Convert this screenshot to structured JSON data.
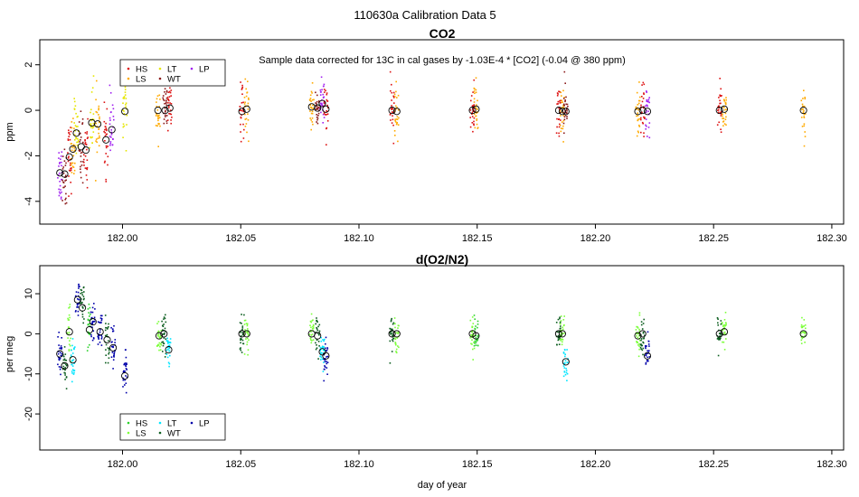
{
  "figure": {
    "title": "110630a   Calibration Data 5"
  },
  "colors": {
    "HS": "#dd1111",
    "LS": "#ffaa00",
    "LT": "#e6e600",
    "WT": "#8b1a1a",
    "LP": "#a020f0",
    "HS2": "#2bd12b",
    "LS2": "#7cff3a",
    "LT2": "#00e5ff",
    "WT2": "#0b5d1e",
    "LP2": "#0000aa"
  },
  "chart_data": [
    {
      "type": "scatter",
      "title": "CO2",
      "annotation": "Sample data corrected for 13C in cal gases by -1.03E-4 * [CO2] (-0.04 @ 380 ppm)",
      "xlabel": "",
      "ylabel": "ppm",
      "xlim": [
        181.965,
        182.305
      ],
      "ylim": [
        -5.0,
        3.1
      ],
      "xticks": [
        182.0,
        182.05,
        182.1,
        182.15,
        182.2,
        182.25,
        182.3
      ],
      "xtick_labels": [
        "182.00",
        "182.05",
        "182.10",
        "182.15",
        "182.20",
        "182.25",
        "182.30"
      ],
      "yticks": [
        -4,
        -2,
        0,
        2
      ],
      "ytick_labels": [
        "-4",
        "-2",
        "0",
        "2"
      ],
      "legend": {
        "placement": "top-left",
        "entries": [
          "HS",
          "LS",
          "LT",
          "WT",
          "LP"
        ]
      },
      "means": [
        {
          "x": 181.9735,
          "y": -2.75,
          "series": "LP"
        },
        {
          "x": 181.9755,
          "y": -2.8,
          "series": "WT"
        },
        {
          "x": 181.9775,
          "y": -2.05,
          "series": "HS"
        },
        {
          "x": 181.979,
          "y": -1.7,
          "series": "LS"
        },
        {
          "x": 181.9805,
          "y": -1.0,
          "series": "LT"
        },
        {
          "x": 181.9825,
          "y": -1.6,
          "series": "WT"
        },
        {
          "x": 181.9845,
          "y": -1.75,
          "series": "HS"
        },
        {
          "x": 181.987,
          "y": -0.55,
          "series": "LT"
        },
        {
          "x": 181.9895,
          "y": -0.6,
          "series": "LS"
        },
        {
          "x": 181.993,
          "y": -1.3,
          "series": "HS"
        },
        {
          "x": 181.9955,
          "y": -0.85,
          "series": "LP"
        },
        {
          "x": 182.001,
          "y": -0.05,
          "series": "LT"
        },
        {
          "x": 182.015,
          "y": 0.0,
          "series": "LS"
        },
        {
          "x": 182.018,
          "y": 0.0,
          "series": "WT"
        },
        {
          "x": 182.02,
          "y": 0.1,
          "series": "HS"
        },
        {
          "x": 182.0505,
          "y": -0.05,
          "series": "HS"
        },
        {
          "x": 182.0525,
          "y": 0.05,
          "series": "LS"
        },
        {
          "x": 182.08,
          "y": 0.15,
          "series": "LS"
        },
        {
          "x": 182.0825,
          "y": 0.1,
          "series": "WT"
        },
        {
          "x": 182.0845,
          "y": 0.3,
          "series": "LP"
        },
        {
          "x": 182.086,
          "y": 0.05,
          "series": "HS"
        },
        {
          "x": 182.114,
          "y": 0.0,
          "series": "HS"
        },
        {
          "x": 182.116,
          "y": -0.05,
          "series": "LS"
        },
        {
          "x": 182.148,
          "y": 0.0,
          "series": "HS"
        },
        {
          "x": 182.1495,
          "y": 0.05,
          "series": "LS"
        },
        {
          "x": 182.1845,
          "y": 0.0,
          "series": "HS"
        },
        {
          "x": 182.186,
          "y": -0.05,
          "series": "LS"
        },
        {
          "x": 182.1875,
          "y": -0.05,
          "series": "WT"
        },
        {
          "x": 182.218,
          "y": -0.05,
          "series": "LS"
        },
        {
          "x": 182.22,
          "y": 0.0,
          "series": "HS"
        },
        {
          "x": 182.222,
          "y": -0.05,
          "series": "LP"
        },
        {
          "x": 182.2525,
          "y": 0.0,
          "series": "HS"
        },
        {
          "x": 182.2545,
          "y": 0.05,
          "series": "LS"
        },
        {
          "x": 182.288,
          "y": 0.0,
          "series": "LS"
        }
      ]
    },
    {
      "type": "scatter",
      "title": "d(O2/N2)",
      "xlabel": "day of year",
      "ylabel": "per meg",
      "xlim": [
        181.965,
        182.305
      ],
      "ylim": [
        -29.0,
        17.0
      ],
      "xticks": [
        182.0,
        182.05,
        182.1,
        182.15,
        182.2,
        182.25,
        182.3
      ],
      "xtick_labels": [
        "182.00",
        "182.05",
        "182.10",
        "182.15",
        "182.20",
        "182.25",
        "182.30"
      ],
      "yticks": [
        -20,
        -10,
        0,
        10
      ],
      "ytick_labels": [
        "-20",
        "-10",
        "0",
        "10"
      ],
      "legend": {
        "placement": "bottom-left",
        "entries": [
          "HS",
          "LS",
          "LT",
          "WT",
          "LP"
        ]
      },
      "means": [
        {
          "x": 181.9735,
          "y": -5.0,
          "series": "LP"
        },
        {
          "x": 181.9755,
          "y": -8.0,
          "series": "WT"
        },
        {
          "x": 181.9775,
          "y": 0.5,
          "series": "LS"
        },
        {
          "x": 181.979,
          "y": -6.5,
          "series": "LT"
        },
        {
          "x": 181.981,
          "y": 8.5,
          "series": "LP"
        },
        {
          "x": 181.983,
          "y": 6.5,
          "series": "WT"
        },
        {
          "x": 181.986,
          "y": 1.0,
          "series": "HS"
        },
        {
          "x": 181.9875,
          "y": 3.0,
          "series": "LP"
        },
        {
          "x": 181.9905,
          "y": 0.5,
          "series": "LP"
        },
        {
          "x": 181.9935,
          "y": -1.5,
          "series": "WT"
        },
        {
          "x": 181.996,
          "y": -3.5,
          "series": "LP"
        },
        {
          "x": 182.001,
          "y": -10.5,
          "series": "LP"
        },
        {
          "x": 182.0155,
          "y": -0.5,
          "series": "LS"
        },
        {
          "x": 182.0175,
          "y": 0.0,
          "series": "WT"
        },
        {
          "x": 182.0195,
          "y": -4.0,
          "series": "LT"
        },
        {
          "x": 182.0505,
          "y": 0.0,
          "series": "WT"
        },
        {
          "x": 182.0525,
          "y": 0.0,
          "series": "LS"
        },
        {
          "x": 182.08,
          "y": 0.0,
          "series": "LS"
        },
        {
          "x": 182.0825,
          "y": -0.5,
          "series": "WT"
        },
        {
          "x": 182.0845,
          "y": -4.5,
          "series": "LT"
        },
        {
          "x": 182.086,
          "y": -5.5,
          "series": "LP"
        },
        {
          "x": 182.114,
          "y": 0.0,
          "series": "WT"
        },
        {
          "x": 182.116,
          "y": 0.0,
          "series": "LS"
        },
        {
          "x": 182.148,
          "y": 0.0,
          "series": "LS"
        },
        {
          "x": 182.1495,
          "y": -0.5,
          "series": "HS"
        },
        {
          "x": 182.1845,
          "y": 0.0,
          "series": "WT"
        },
        {
          "x": 182.186,
          "y": 0.0,
          "series": "LS"
        },
        {
          "x": 182.1875,
          "y": -7.0,
          "series": "LT"
        },
        {
          "x": 182.218,
          "y": -0.5,
          "series": "LS"
        },
        {
          "x": 182.22,
          "y": 0.0,
          "series": "WT"
        },
        {
          "x": 182.222,
          "y": -5.5,
          "series": "LP"
        },
        {
          "x": 182.2525,
          "y": 0.0,
          "series": "WT"
        },
        {
          "x": 182.2545,
          "y": 0.5,
          "series": "LS"
        },
        {
          "x": 182.288,
          "y": 0.0,
          "series": "LS"
        }
      ]
    }
  ]
}
